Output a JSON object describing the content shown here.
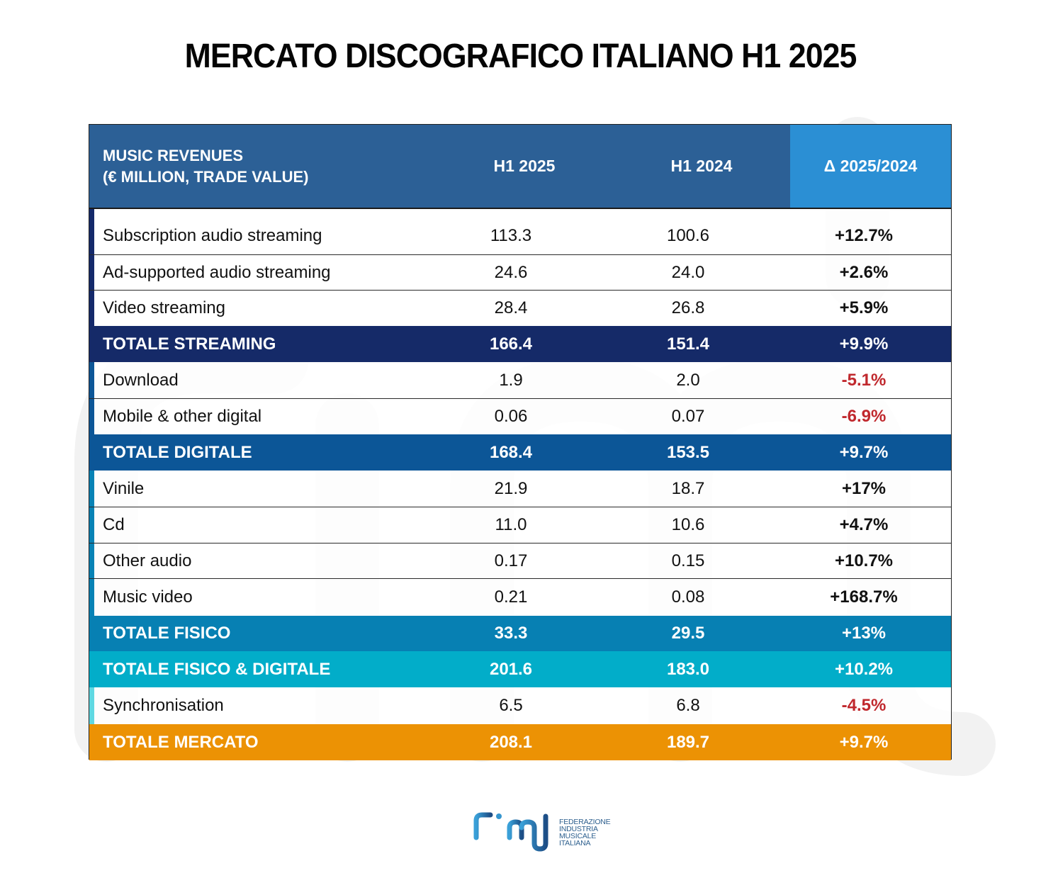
{
  "title": "MERCATO DISCOGRAFICO ITALIANO H1 2025",
  "chart_data": {
    "type": "table",
    "title": "MERCATO DISCOGRAFICO ITALIANO H1 2025",
    "columns": [
      "MUSIC REVENUES (€ MILLION, TRADE VALUE)",
      "H1 2025",
      "H1 2024",
      "Δ 2025/2024"
    ],
    "header": {
      "label_line1": "MUSIC REVENUES",
      "label_line2": "(€ MILLION, TRADE VALUE)",
      "col1": "H1 2025",
      "col2": "H1 2024",
      "col3": "Δ 2025/2024"
    },
    "rows": [
      {
        "label": "Subscription audio streaming",
        "h1_2025": "113.3",
        "h1_2024": "100.6",
        "delta": "+12.7%",
        "kind": "item",
        "accent": "#14296a",
        "delta_negative": false
      },
      {
        "label": "Ad-supported audio streaming",
        "h1_2025": "24.6",
        "h1_2024": "24.0",
        "delta": "+2.6%",
        "kind": "item",
        "accent": "#14296a",
        "delta_negative": false
      },
      {
        "label": "Video streaming",
        "h1_2025": "28.4",
        "h1_2024": "26.8",
        "delta": "+5.9%",
        "kind": "item",
        "accent": "#14296a",
        "delta_negative": false
      },
      {
        "label": "TOTALE STREAMING",
        "h1_2025": "166.4",
        "h1_2024": "151.4",
        "delta": "+9.9%",
        "kind": "total",
        "bg": "#152a68",
        "delta_negative": false
      },
      {
        "label": "Download",
        "h1_2025": "1.9",
        "h1_2024": "2.0",
        "delta": "-5.1%",
        "kind": "item",
        "accent": "#0c5697",
        "delta_negative": true
      },
      {
        "label": "Mobile & other digital",
        "h1_2025": "0.06",
        "h1_2024": "0.07",
        "delta": "-6.9%",
        "kind": "item",
        "accent": "#0c5697",
        "delta_negative": true
      },
      {
        "label": "TOTALE DIGITALE",
        "h1_2025": "168.4",
        "h1_2024": "153.5",
        "delta": "+9.7%",
        "kind": "total",
        "bg": "#0c5697",
        "delta_negative": false
      },
      {
        "label": "Vinile",
        "h1_2025": "21.9",
        "h1_2024": "18.7",
        "delta": "+17%",
        "kind": "item",
        "accent": "#0782b5",
        "delta_negative": false
      },
      {
        "label": "Cd",
        "h1_2025": "11.0",
        "h1_2024": "10.6",
        "delta": "+4.7%",
        "kind": "item",
        "accent": "#0782b5",
        "delta_negative": false
      },
      {
        "label": "Other audio",
        "h1_2025": "0.17",
        "h1_2024": "0.15",
        "delta": "+10.7%",
        "kind": "item",
        "accent": "#0782b5",
        "delta_negative": false
      },
      {
        "label": "Music video",
        "h1_2025": "0.21",
        "h1_2024": "0.08",
        "delta": "+168.7%",
        "kind": "item",
        "accent": "#0782b5",
        "delta_negative": false
      },
      {
        "label": "TOTALE FISICO",
        "h1_2025": "33.3",
        "h1_2024": "29.5",
        "delta": "+13%",
        "kind": "total",
        "bg": "#0780b3",
        "delta_negative": false
      },
      {
        "label": "TOTALE FISICO & DIGITALE",
        "h1_2025": "201.6",
        "h1_2024": "183.0",
        "delta": "+10.2%",
        "kind": "total",
        "bg": "#02adc9",
        "delta_negative": false
      },
      {
        "label": "Synchronisation",
        "h1_2025": "6.5",
        "h1_2024": "6.8",
        "delta": "-4.5%",
        "kind": "item",
        "accent": "#5fd8e2",
        "delta_negative": true
      },
      {
        "label": "TOTALE MERCATO",
        "h1_2025": "208.1",
        "h1_2024": "189.7",
        "delta": "+9.7%",
        "kind": "total",
        "bg": "#ec9204",
        "delta_negative": false
      }
    ]
  },
  "colors": {
    "header_bg": "#2c6096",
    "header_delta_bg": "#2b8fd4",
    "negative_text": "#c0282d"
  },
  "logo": {
    "wordmark": "fimi",
    "line1": "FEDERAZIONE",
    "line2": "INDUSTRIA",
    "line3": "MUSICALE",
    "line4": "ITALIANA"
  }
}
